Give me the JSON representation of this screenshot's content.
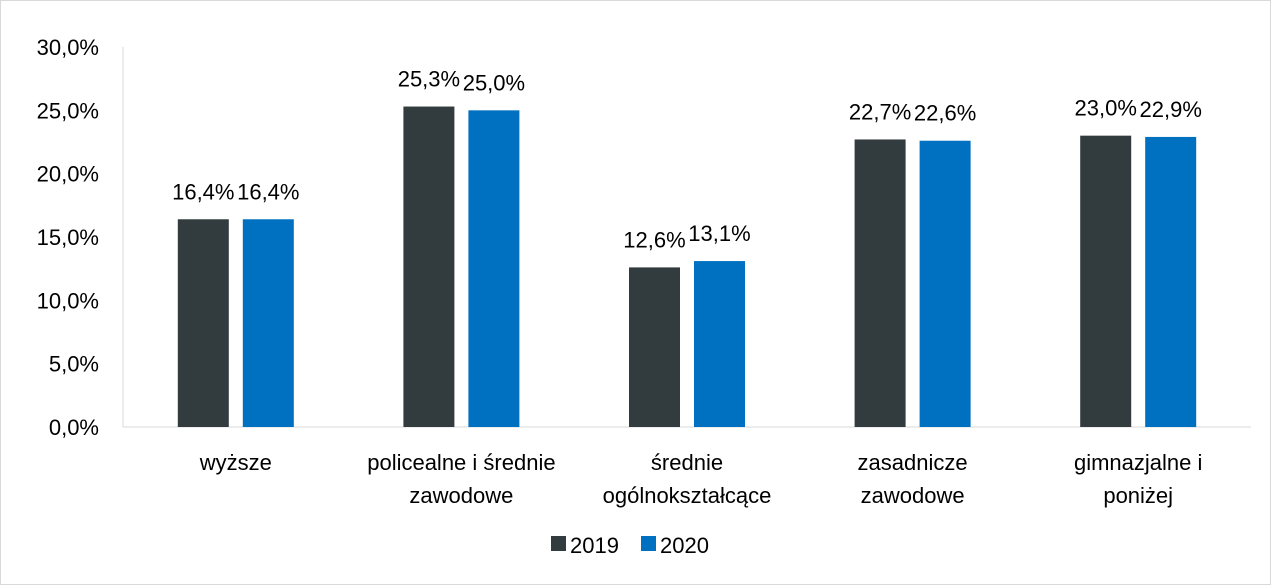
{
  "chart_data": {
    "type": "bar",
    "title": "",
    "xlabel": "",
    "ylabel": "",
    "categories": [
      [
        "wyższe"
      ],
      [
        "policealne i średnie",
        "zawodowe"
      ],
      [
        "średnie",
        "ogólnokształcące"
      ],
      [
        "zasadnicze",
        "zawodowe"
      ],
      [
        "gimnazjalne i",
        "poniżej"
      ]
    ],
    "series": [
      {
        "name": "2019",
        "color": "#323B3D",
        "values": [
          16.4,
          25.3,
          12.6,
          22.7,
          23.0
        ]
      },
      {
        "name": "2020",
        "color": "#0070C0",
        "values": [
          16.4,
          25.0,
          13.1,
          22.6,
          22.9
        ]
      }
    ],
    "data_labels": [
      [
        "16,4%",
        "25,3%",
        "12,6%",
        "22,7%",
        "23,0%"
      ],
      [
        "16,4%",
        "25,0%",
        "13,1%",
        "22,6%",
        "22,9%"
      ]
    ],
    "ylim": [
      0,
      30
    ],
    "yticks": [
      0,
      5,
      10,
      15,
      20,
      25,
      30
    ],
    "ytick_labels": [
      "0,0%",
      "5,0%",
      "10,0%",
      "15,0%",
      "20,0%",
      "25,0%",
      "30,0%"
    ],
    "grid": false,
    "legend_position": "bottom-center"
  }
}
